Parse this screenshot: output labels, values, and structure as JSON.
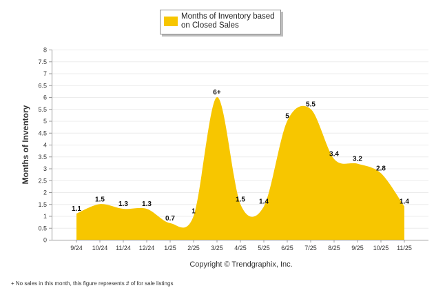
{
  "chart_data": {
    "type": "area",
    "categories": [
      "9/24",
      "10/24",
      "11/24",
      "12/24",
      "1/25",
      "2/25",
      "3/25",
      "4/25",
      "5/25",
      "6/25",
      "7/25",
      "8/25",
      "9/25",
      "10/25",
      "11/25"
    ],
    "series": [
      {
        "name": "Months of Inventory based on Closed Sales",
        "values": [
          1.1,
          1.5,
          1.3,
          1.3,
          0.7,
          1,
          6,
          1.5,
          1.4,
          5,
          5.5,
          3.4,
          3.2,
          2.8,
          1.4
        ],
        "labels": [
          "1.1",
          "1.5",
          "1.3",
          "1.3",
          "0.7",
          "1",
          "6+",
          "1.5",
          "1.4",
          "5",
          "5.5",
          "3.4",
          "3.2",
          "2.8",
          "1.4"
        ]
      }
    ],
    "title": "",
    "xlabel": "Copyright © Trendgraphix, Inc.",
    "ylabel": "Months of Inventory",
    "ylim": [
      0,
      8
    ],
    "yticks": [
      "0",
      "0.5",
      "1",
      "1.5",
      "2",
      "2.5",
      "3",
      "3.5",
      "4",
      "4.5",
      "5",
      "5.5",
      "6",
      "6.5",
      "7",
      "7.5",
      "8"
    ],
    "grid": true,
    "legend": "top-center",
    "color": "#f7c600"
  },
  "footnote": "+  No sales in this month, this figure represents # of for sale listings"
}
